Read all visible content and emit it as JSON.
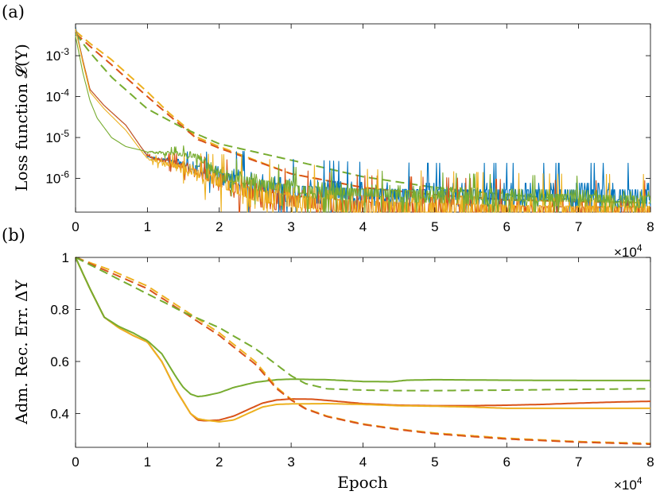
{
  "colors": {
    "blue": "#0072BD",
    "red": "#D95319",
    "yellow": "#EDB120",
    "green": "#77AC30"
  },
  "chart_data": [
    {
      "panel_label": "(a)",
      "type": "line",
      "ylabel": "Loss function 𝓛(Y)",
      "xlabel": "",
      "yscale": "log",
      "xlim": [
        0,
        80000
      ],
      "ylim": [
        1.5e-07,
        0.006
      ],
      "x_exponent_label": "×10",
      "x_exponent": "4",
      "xticks": [
        0,
        10000,
        20000,
        30000,
        40000,
        50000,
        60000,
        70000,
        80000
      ],
      "xtick_labels": [
        "0",
        "1",
        "2",
        "3",
        "4",
        "5",
        "6",
        "7",
        "8"
      ],
      "yticks": [
        1e-06,
        1e-05,
        0.0001,
        0.001
      ],
      "ytick_labels": [
        {
          "base": "10",
          "exp": "-6"
        },
        {
          "base": "10",
          "exp": "-5"
        },
        {
          "base": "10",
          "exp": "-4"
        },
        {
          "base": "10",
          "exp": "-3"
        }
      ],
      "grid": false,
      "series": [
        {
          "color": "yellow",
          "style": "dashed",
          "noise": 0,
          "x": [
            0,
            2000,
            5000,
            10000,
            13000,
            17000,
            20000,
            30000,
            40000,
            50000,
            60000,
            70000,
            80000
          ],
          "y": [
            0.004,
            0.002,
            0.0008,
            0.00013,
            4e-05,
            1e-05,
            6e-06,
            1.3e-06,
            6e-07,
            4e-07,
            3e-07,
            2.8e-07,
            2.5e-07
          ]
        },
        {
          "color": "red",
          "style": "dashed",
          "noise": 0,
          "x": [
            0,
            2000,
            5000,
            10000,
            13000,
            17000,
            20000,
            30000,
            40000,
            50000,
            60000,
            70000,
            80000
          ],
          "y": [
            0.0035,
            0.0017,
            0.0006,
            0.0001,
            3.5e-05,
            9e-06,
            5.5e-06,
            1.3e-06,
            6e-07,
            4e-07,
            3e-07,
            2.7e-07,
            2.5e-07
          ]
        },
        {
          "color": "green",
          "style": "dashed",
          "noise": 0,
          "x": [
            0,
            2000,
            5000,
            10000,
            15000,
            20000,
            30000,
            40000,
            50000,
            60000,
            70000,
            80000
          ],
          "y": [
            0.0035,
            0.0012,
            0.0003,
            5e-05,
            1.7e-05,
            7e-06,
            2.8e-06,
            1.1e-06,
            6e-07,
            4e-07,
            3e-07,
            2.5e-07
          ]
        },
        {
          "color": "blue",
          "style": "solid",
          "noise": 1.0,
          "x": [
            0,
            1000,
            2000,
            4000,
            7000,
            10000,
            15000,
            20000,
            25000,
            30000,
            40000,
            50000,
            60000,
            70000,
            80000
          ],
          "y": [
            0.005,
            0.0008,
            0.00015,
            6e-05,
            2e-05,
            3.5e-06,
            2.2e-06,
            1.2e-06,
            7e-07,
            5e-07,
            4.2e-07,
            4e-07,
            4e-07,
            4e-07,
            4e-07
          ]
        },
        {
          "color": "red",
          "style": "solid",
          "noise": 1.0,
          "x": [
            0,
            1000,
            2000,
            4000,
            7000,
            10000,
            15000,
            20000,
            25000,
            30000,
            40000,
            50000,
            60000,
            70000,
            80000
          ],
          "y": [
            0.0045,
            0.0008,
            0.00015,
            6e-05,
            2e-05,
            3.5e-06,
            2e-06,
            8e-07,
            4e-07,
            2.8e-07,
            2e-07,
            1.8e-07,
            1.6e-07,
            1.5e-07,
            1.5e-07
          ]
        },
        {
          "color": "yellow",
          "style": "solid",
          "noise": 1.2,
          "x": [
            0,
            1000,
            2000,
            4000,
            7000,
            10000,
            15000,
            20000,
            25000,
            30000,
            40000,
            50000,
            60000,
            70000,
            80000
          ],
          "y": [
            0.0045,
            0.0007,
            0.00013,
            5e-05,
            1.5e-05,
            3e-06,
            1.8e-06,
            8e-07,
            4e-07,
            2.8e-07,
            2e-07,
            1.8e-07,
            1.6e-07,
            1.5e-07,
            1.5e-07
          ]
        },
        {
          "color": "green",
          "style": "solid",
          "noise": 0.7,
          "x": [
            0,
            1000,
            2000,
            3000,
            5000,
            7000,
            10000,
            15000,
            17000,
            20000,
            30000,
            40000,
            50000,
            60000,
            70000,
            80000
          ],
          "y": [
            0.003,
            0.0004,
            8e-05,
            3e-05,
            1e-05,
            6e-06,
            4.5e-06,
            3.8e-06,
            3.5e-06,
            1.2e-06,
            5.5e-07,
            4.5e-07,
            4e-07,
            3.5e-07,
            3.3e-07,
            3e-07
          ]
        }
      ]
    },
    {
      "panel_label": "(b)",
      "type": "line",
      "ylabel": "Adm. Rec. Err. ΔY",
      "xlabel": "Epoch",
      "yscale": "linear",
      "xlim": [
        0,
        80000
      ],
      "ylim": [
        0.27,
        1.0
      ],
      "x_exponent_label": "×10",
      "x_exponent": "4",
      "xticks": [
        0,
        10000,
        20000,
        30000,
        40000,
        50000,
        60000,
        70000,
        80000
      ],
      "xtick_labels": [
        "0",
        "1",
        "2",
        "3",
        "4",
        "5",
        "6",
        "7",
        "8"
      ],
      "yticks": [
        0.4,
        0.6,
        0.8,
        1.0
      ],
      "ytick_labels": [
        "0.4",
        "0.6",
        "0.8",
        "1"
      ],
      "grid": false,
      "series": [
        {
          "color": "red",
          "style": "solid",
          "x": [
            0,
            2000,
            4000,
            6000,
            8000,
            10000,
            12000,
            14000,
            16000,
            17000,
            18000,
            20000,
            22000,
            24000,
            26000,
            28000,
            30000,
            33000,
            36000,
            40000,
            45000,
            50000,
            55000,
            60000,
            65000,
            70000,
            75000,
            80000
          ],
          "y": [
            1.0,
            0.88,
            0.77,
            0.73,
            0.7,
            0.675,
            0.6,
            0.49,
            0.4,
            0.375,
            0.372,
            0.375,
            0.39,
            0.415,
            0.44,
            0.452,
            0.456,
            0.455,
            0.448,
            0.438,
            0.432,
            0.43,
            0.43,
            0.432,
            0.435,
            0.44,
            0.444,
            0.447
          ]
        },
        {
          "color": "yellow",
          "style": "solid",
          "x": [
            0,
            2000,
            4000,
            6000,
            8000,
            10000,
            12000,
            14000,
            16000,
            17000,
            18000,
            20000,
            22000,
            24000,
            26000,
            28000,
            30000,
            35000,
            40000,
            45000,
            50000,
            55000,
            60000,
            70000,
            80000
          ],
          "y": [
            1.0,
            0.88,
            0.77,
            0.73,
            0.7,
            0.675,
            0.6,
            0.49,
            0.4,
            0.38,
            0.375,
            0.368,
            0.375,
            0.4,
            0.425,
            0.435,
            0.437,
            0.438,
            0.435,
            0.43,
            0.428,
            0.425,
            0.42,
            0.42,
            0.42
          ]
        },
        {
          "color": "green",
          "style": "solid",
          "x": [
            0,
            2000,
            4000,
            6000,
            8000,
            10000,
            12000,
            14000,
            15000,
            16000,
            17000,
            18000,
            20000,
            22000,
            25000,
            28000,
            30000,
            35000,
            40000,
            44000,
            46000,
            50000,
            60000,
            70000,
            80000
          ],
          "y": [
            1.0,
            0.88,
            0.77,
            0.735,
            0.71,
            0.68,
            0.63,
            0.54,
            0.5,
            0.475,
            0.465,
            0.468,
            0.48,
            0.5,
            0.52,
            0.53,
            0.532,
            0.53,
            0.523,
            0.522,
            0.528,
            0.53,
            0.528,
            0.527,
            0.527
          ]
        },
        {
          "color": "yellow",
          "style": "dashed",
          "x": [
            0,
            5000,
            10000,
            15000,
            20000,
            25000,
            28000,
            30000,
            32000,
            35000,
            40000,
            45000,
            50000,
            60000,
            70000,
            80000
          ],
          "y": [
            1.0,
            0.95,
            0.89,
            0.8,
            0.71,
            0.6,
            0.5,
            0.455,
            0.42,
            0.39,
            0.36,
            0.34,
            0.325,
            0.305,
            0.292,
            0.285
          ]
        },
        {
          "color": "red",
          "style": "dashed",
          "x": [
            0,
            5000,
            10000,
            15000,
            20000,
            25000,
            28000,
            30000,
            32000,
            35000,
            40000,
            45000,
            50000,
            60000,
            70000,
            80000
          ],
          "y": [
            1.0,
            0.94,
            0.88,
            0.79,
            0.7,
            0.59,
            0.495,
            0.452,
            0.418,
            0.388,
            0.358,
            0.338,
            0.322,
            0.302,
            0.29,
            0.282
          ]
        },
        {
          "color": "green",
          "style": "dashed",
          "x": [
            0,
            5000,
            10000,
            15000,
            20000,
            25000,
            30000,
            32000,
            35000,
            40000,
            45000,
            50000,
            60000,
            70000,
            80000
          ],
          "y": [
            1.0,
            0.93,
            0.86,
            0.79,
            0.73,
            0.65,
            0.545,
            0.515,
            0.495,
            0.49,
            0.488,
            0.488,
            0.49,
            0.493,
            0.495
          ]
        }
      ]
    }
  ]
}
